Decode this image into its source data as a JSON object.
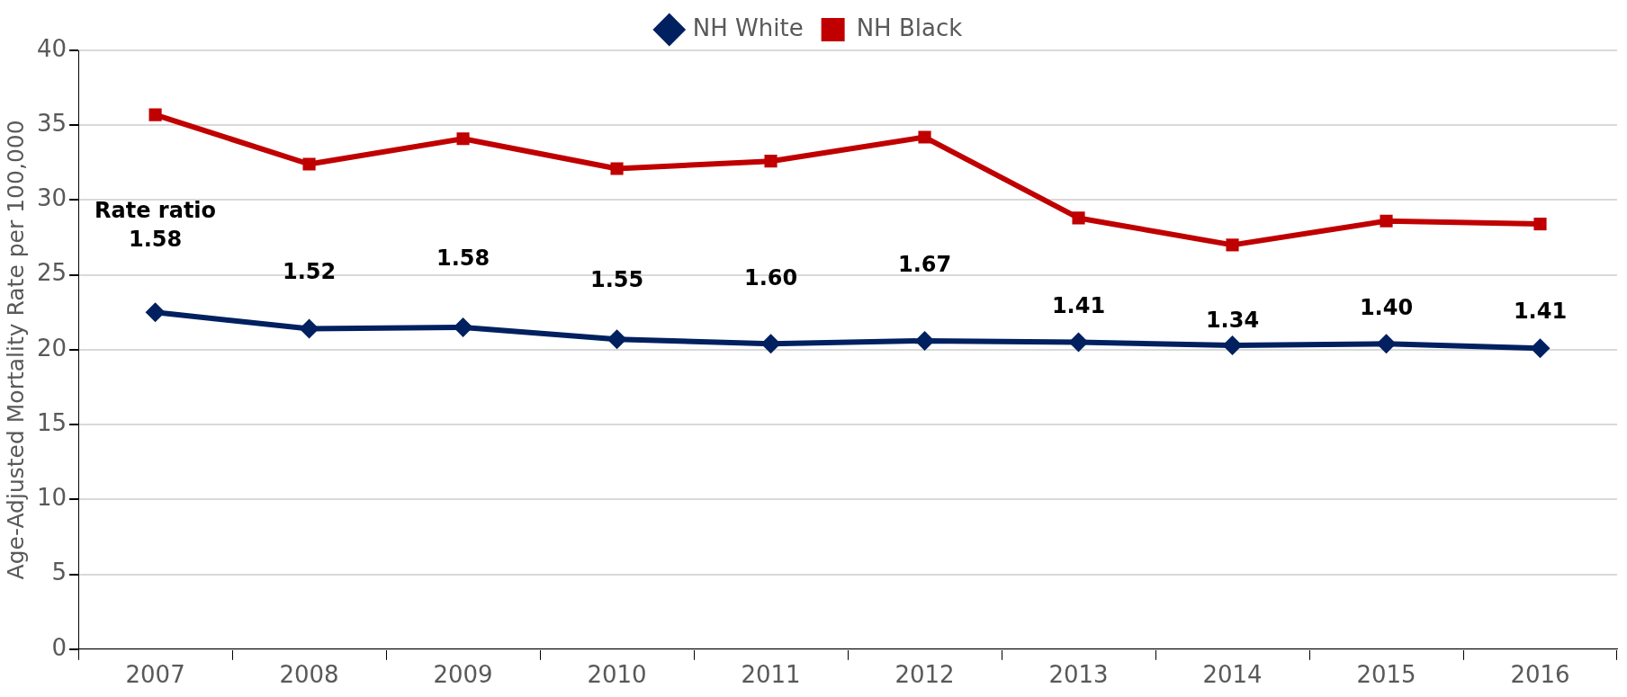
{
  "chart_data": {
    "type": "line",
    "ylabel": "Age-Adjusted Mortality Rate per 100,000",
    "categories": [
      "2007",
      "2008",
      "2009",
      "2010",
      "2011",
      "2012",
      "2013",
      "2014",
      "2015",
      "2016"
    ],
    "series": [
      {
        "name": "NH White",
        "color": "#002060",
        "marker": "diamond",
        "values": [
          22.5,
          21.4,
          21.5,
          20.7,
          20.4,
          20.6,
          20.5,
          20.3,
          20.4,
          20.1
        ]
      },
      {
        "name": "NH Black",
        "color": "#c00000",
        "marker": "square",
        "values": [
          35.7,
          32.4,
          34.1,
          32.1,
          32.6,
          34.2,
          28.8,
          27.0,
          28.6,
          28.4
        ]
      }
    ],
    "ylim": [
      0,
      40
    ],
    "yticks": [
      0,
      5,
      10,
      15,
      20,
      25,
      30,
      35,
      40
    ],
    "grid": "y",
    "legend": "top",
    "line_style": "solid",
    "annotations": [
      "Rate ratio",
      "1.58",
      "1.52",
      "1.58",
      "1.55",
      "1.60",
      "1.67",
      "1.41",
      "1.34",
      "1.40",
      "1.41"
    ]
  }
}
